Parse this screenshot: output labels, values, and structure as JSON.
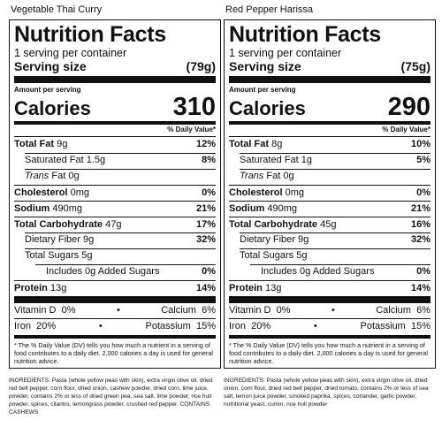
{
  "products": [
    {
      "name": "Vegetable Thai Curry",
      "title": "Nutrition Facts",
      "servings": "1 serving per container",
      "serving_size_label": "Serving size",
      "serving_size_value": "(79g)",
      "amount_per_serving": "Amount per serving",
      "calories_label": "Calories",
      "calories_value": "310",
      "dv_header": "% Daily Value*",
      "rows": [
        {
          "bold_label": "Total Fat",
          "label": "",
          "value": "9g",
          "dv": "12%"
        },
        {
          "bold_label": "",
          "label": "Saturated Fat",
          "value": "1.5g",
          "dv": "8%"
        },
        {
          "bold_label": "",
          "label": "Trans",
          "label2": " Fat",
          "value": "0g",
          "dv": ""
        },
        {
          "bold_label": "Cholesterol",
          "label": "",
          "value": "0mg",
          "dv": "0%"
        },
        {
          "bold_label": "Sodium",
          "label": "",
          "value": "490mg",
          "dv": "21%"
        },
        {
          "bold_label": "Total Carbohydrate",
          "label": "",
          "value": "47g",
          "dv": "17%"
        },
        {
          "bold_label": "",
          "label": "Dietary Fiber",
          "value": "9g",
          "dv": "32%"
        },
        {
          "bold_label": "",
          "label": "Total Sugars",
          "value": "5g",
          "dv": ""
        },
        {
          "bold_label": "",
          "label": "Includes",
          "value": "0g Added Sugars",
          "dv": "0%"
        },
        {
          "bold_label": "Protein",
          "label": "",
          "value": "13g",
          "dv": "14%"
        }
      ],
      "vitamins": [
        {
          "left_label": "Vitamin D",
          "left_value": "0%",
          "right_label": "Calcium",
          "right_value": "6%"
        },
        {
          "left_label": "Iron",
          "left_value": "20%",
          "right_label": "Potassium",
          "right_value": "15%"
        }
      ],
      "footnote": "* The % Daily Value (DV) tells you how much a nutrient in a serving of food contributes to a daily diet. 2,000 calories a day is used for general nutrition advice.",
      "ingredients": "INGREDIENTS: Pasta (whole yellow peas with skin), extra virgin olive oil, dried red bell pepper, corn flour, dried onion, cashew powder, dried corn, lime juice, powder, contains 2% or less of dried green pea, sea salt, lime powder, rice hull powder, spices, cilantro, lemongrass powder, crushed red pepper. CONTAINS CASHEWS"
    },
    {
      "name": "Red Pepper Harissa",
      "title": "Nutrition Facts",
      "servings": "1 serving per container",
      "serving_size_label": "Serving size",
      "serving_size_value": "(75g)",
      "amount_per_serving": "Amount per serving",
      "calories_label": "Calories",
      "calories_value": "290",
      "dv_header": "% Daily Value*",
      "rows": [
        {
          "bold_label": "Total Fat",
          "label": "",
          "value": "8g",
          "dv": "10%"
        },
        {
          "bold_label": "",
          "label": "Saturated Fat",
          "value": "1g",
          "dv": "5%"
        },
        {
          "bold_label": "",
          "label": "Trans",
          "label2": " Fat",
          "value": "0g",
          "dv": ""
        },
        {
          "bold_label": "Cholesterol",
          "label": "",
          "value": "0mg",
          "dv": "0%"
        },
        {
          "bold_label": "Sodium",
          "label": "",
          "value": "490mg",
          "dv": "21%"
        },
        {
          "bold_label": "Total Carbohydrate",
          "label": "",
          "value": "45g",
          "dv": "16%"
        },
        {
          "bold_label": "",
          "label": "Dietary Fiber",
          "value": "9g",
          "dv": "32%"
        },
        {
          "bold_label": "",
          "label": "Total Sugars",
          "value": "5g",
          "dv": ""
        },
        {
          "bold_label": "",
          "label": "Includes",
          "value": "0g Added Sugars",
          "dv": "0%"
        },
        {
          "bold_label": "Protein",
          "label": "",
          "value": "13g",
          "dv": "14%"
        }
      ],
      "vitamins": [
        {
          "left_label": "Vitamin D",
          "left_value": "0%",
          "right_label": "Calcium",
          "right_value": "6%"
        },
        {
          "left_label": "Iron",
          "left_value": "20%",
          "right_label": "Potassium",
          "right_value": "15%"
        }
      ],
      "footnote": "* The % Daily Value (DV) tells you how much a nutrient in a serving of food contributes to a daily diet. 2,000 calories a day is used for general nutrition advice.",
      "ingredients": "INGREDIENTS: Pasta (whole yellow peas with skin), extra virgin olive oil, dried onion, corn flour, dried red bell pepper, dried tomato, contains 2% or less of sea salt, lemon juice powder, smoked paprika, spices, coriander, garlic powder, nutritional yeast, cumin, rice hull powder"
    }
  ]
}
